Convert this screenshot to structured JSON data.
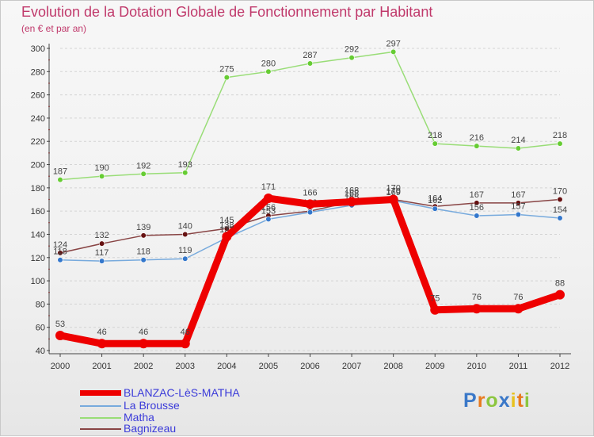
{
  "chart_data": {
    "type": "line",
    "title": "Evolution de la Dotation Globale de Fonctionnement par Habitant",
    "subtitle": "(en € et par an)",
    "xlabel": "",
    "ylabel": "",
    "categories": [
      "2000",
      "2001",
      "2002",
      "2003",
      "2004",
      "2005",
      "2006",
      "2007",
      "2008",
      "2009",
      "2010",
      "2011",
      "2012"
    ],
    "ylim": [
      40,
      300
    ],
    "yticks": [
      40,
      60,
      80,
      100,
      120,
      140,
      160,
      180,
      200,
      220,
      240,
      260,
      280,
      300
    ],
    "grid": "horizontal dashed",
    "series": [
      {
        "name": "Matha",
        "color": "#99dd77",
        "marker": "#66cc33",
        "values": [
          187,
          190,
          192,
          193,
          275,
          280,
          287,
          292,
          297,
          218,
          216,
          214,
          218
        ]
      },
      {
        "name": "Bagnizeau",
        "color": "#884444",
        "marker": "#661111",
        "values": [
          124,
          132,
          139,
          140,
          145,
          156,
          160,
          168,
          170,
          164,
          167,
          167,
          170
        ]
      },
      {
        "name": "La Brousse",
        "color": "#77aadd",
        "marker": "#3377cc",
        "values": [
          118,
          117,
          118,
          119,
          137,
          153,
          159,
          165,
          169,
          162,
          156,
          157,
          154
        ]
      },
      {
        "name": "BLANZAC-LèS-MATHA",
        "color": "#ee0000",
        "marker": "#ee0000",
        "values": [
          53,
          46,
          46,
          46,
          138,
          171,
          166,
          168,
          170,
          75,
          76,
          76,
          88
        ]
      }
    ],
    "legend": [
      {
        "label": "BLANZAC-LèS-MATHA",
        "color": "#ee0000"
      },
      {
        "label": "La Brousse",
        "color": "#77aadd"
      },
      {
        "label": "Matha",
        "color": "#99dd77"
      },
      {
        "label": "Bagnizeau",
        "color": "#884444"
      }
    ]
  },
  "logo": {
    "letters": [
      "P",
      "r",
      "o",
      "x",
      "i",
      "t",
      "i"
    ],
    "colors": [
      "#3a78c8",
      "#e87a1e",
      "#8cc63f",
      "#3a78c8",
      "#e8c11e",
      "#e87a1e",
      "#8cc63f"
    ]
  }
}
